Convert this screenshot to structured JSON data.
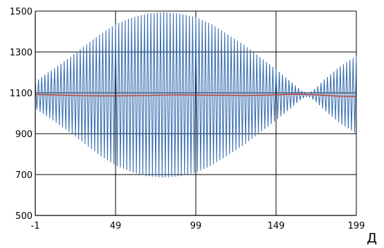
{
  "chart_data": {
    "type": "line",
    "title": "",
    "xlabel": "Д",
    "ylabel": "",
    "xlim": [
      -1,
      199
    ],
    "ylim": [
      500,
      1500
    ],
    "x_ticks": [
      -1,
      49,
      99,
      149,
      199
    ],
    "y_ticks": [
      500,
      700,
      900,
      1100,
      1300,
      1500
    ],
    "grid": true,
    "legend": "none",
    "series": [
      {
        "color": "#3a6fb0",
        "style": "oscillation",
        "x_start": -1,
        "x_end": 199,
        "x_step": 1,
        "center": 1090,
        "envelope": [
          {
            "x": -1,
            "amplitude": 65
          },
          {
            "x": 9,
            "amplitude": 120
          },
          {
            "x": 19,
            "amplitude": 175
          },
          {
            "x": 29,
            "amplitude": 235
          },
          {
            "x": 39,
            "amplitude": 295
          },
          {
            "x": 49,
            "amplitude": 345
          },
          {
            "x": 59,
            "amplitude": 378
          },
          {
            "x": 69,
            "amplitude": 398
          },
          {
            "x": 79,
            "amplitude": 405
          },
          {
            "x": 89,
            "amplitude": 398
          },
          {
            "x": 99,
            "amplitude": 380
          },
          {
            "x": 109,
            "amplitude": 345
          },
          {
            "x": 119,
            "amplitude": 295
          },
          {
            "x": 129,
            "amplitude": 245
          },
          {
            "x": 139,
            "amplitude": 185
          },
          {
            "x": 149,
            "amplitude": 125
          },
          {
            "x": 159,
            "amplitude": 60
          },
          {
            "x": 165,
            "amplitude": 20
          },
          {
            "x": 169,
            "amplitude": 5
          },
          {
            "x": 174,
            "amplitude": 35
          },
          {
            "x": 179,
            "amplitude": 75
          },
          {
            "x": 189,
            "amplitude": 140
          },
          {
            "x": 199,
            "amplitude": 190
          }
        ]
      },
      {
        "color": "#c0392b",
        "style": "line",
        "x": [
          -1,
          9,
          19,
          29,
          39,
          49,
          59,
          69,
          79,
          89,
          99,
          109,
          119,
          129,
          139,
          149,
          159,
          169,
          179,
          189,
          199
        ],
        "y": [
          1092,
          1090,
          1088,
          1086,
          1085,
          1085,
          1086,
          1087,
          1089,
          1090,
          1089,
          1088,
          1088,
          1087,
          1088,
          1090,
          1093,
          1092,
          1088,
          1083,
          1082
        ]
      }
    ]
  }
}
